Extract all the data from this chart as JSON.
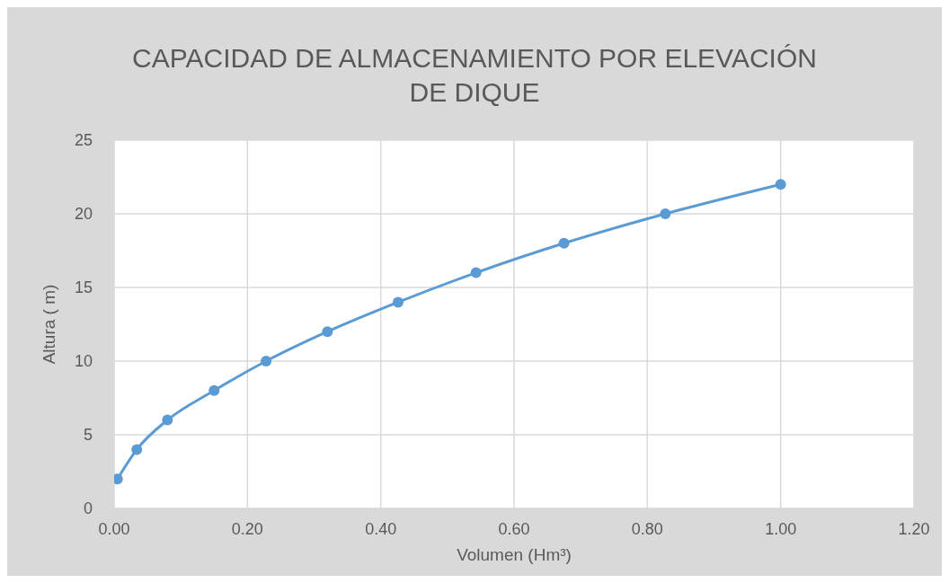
{
  "chart_data": {
    "type": "line",
    "title": "CAPACIDAD DE ALMACENAMIENTO POR ELEVACIÓN DE DIQUE",
    "xlabel": "Volumen (Hm³)",
    "ylabel": "Altura ( m)",
    "x": [
      0.005,
      0.034,
      0.08,
      0.15,
      0.228,
      0.32,
      0.426,
      0.543,
      0.675,
      0.827,
      1.0
    ],
    "series": [
      {
        "color": "#5b9bd5",
        "values": [
          2,
          4,
          6,
          8,
          10,
          12,
          14,
          16,
          18,
          20,
          22
        ]
      }
    ],
    "xlim": [
      0,
      1.2
    ],
    "xticks": [
      {
        "value": 0,
        "label": "0.00"
      },
      {
        "value": 0.2,
        "label": "0.20"
      },
      {
        "value": 0.4,
        "label": "0.40"
      },
      {
        "value": 0.6,
        "label": "0.60"
      },
      {
        "value": 0.8,
        "label": "0.80"
      },
      {
        "value": 1.0,
        "label": "1.00"
      },
      {
        "value": 1.2,
        "label": "1.20"
      }
    ],
    "ylim": [
      0,
      25
    ],
    "yticks": [
      0,
      5,
      10,
      15,
      20,
      25
    ],
    "grid": true,
    "marker": "circle",
    "line_style": "solid"
  }
}
